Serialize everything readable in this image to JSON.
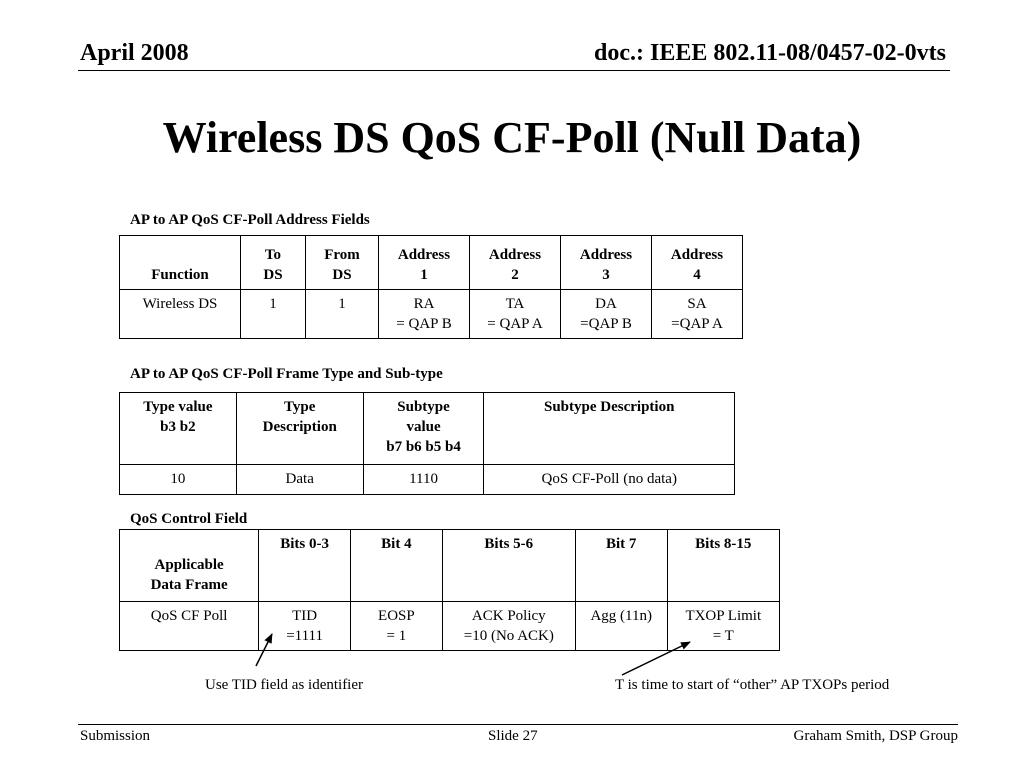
{
  "header": {
    "date": "April  2008",
    "doc": "doc.: IEEE 802.11-08/0457-02-0vts"
  },
  "title": "Wireless DS QoS CF-Poll (Null Data)",
  "table1": {
    "caption": "AP to AP QoS CF-Poll Address Fields",
    "headers": [
      "Function",
      "To\nDS",
      "From\nDS",
      "Address\n1",
      "Address\n2",
      "Address\n3",
      "Address\n4"
    ],
    "row": [
      "Wireless DS",
      "1",
      "1",
      "RA\n= QAP B",
      "TA\n= QAP A",
      "DA\n=QAP B",
      "SA\n=QAP A"
    ]
  },
  "table2": {
    "caption": "AP to AP QoS CF-Poll Frame Type and Sub-type",
    "headers": [
      "Type value\nb3 b2",
      "Type\nDescription",
      "Subtype\nvalue\nb7 b6 b5 b4",
      "Subtype Description"
    ],
    "row": [
      "10",
      "Data",
      "1110",
      "QoS CF-Poll (no data)"
    ]
  },
  "table3": {
    "caption": "QoS Control Field",
    "headers": [
      "Applicable\nData Frame",
      "Bits 0-3",
      "Bit 4",
      "Bits 5-6",
      "Bit 7",
      "Bits 8-15"
    ],
    "row": [
      "QoS CF Poll",
      "TID\n=1111",
      "EOSP\n= 1",
      "ACK Policy\n=10 (No ACK)",
      "Agg (11n)",
      "TXOP Limit\n= T"
    ]
  },
  "notes": {
    "left": "Use TID field as identifier",
    "right": "T is time to start of  “other” AP TXOPs period"
  },
  "footer": {
    "left": "Submission",
    "center": "Slide 27",
    "right": "Graham Smith, DSP Group"
  }
}
